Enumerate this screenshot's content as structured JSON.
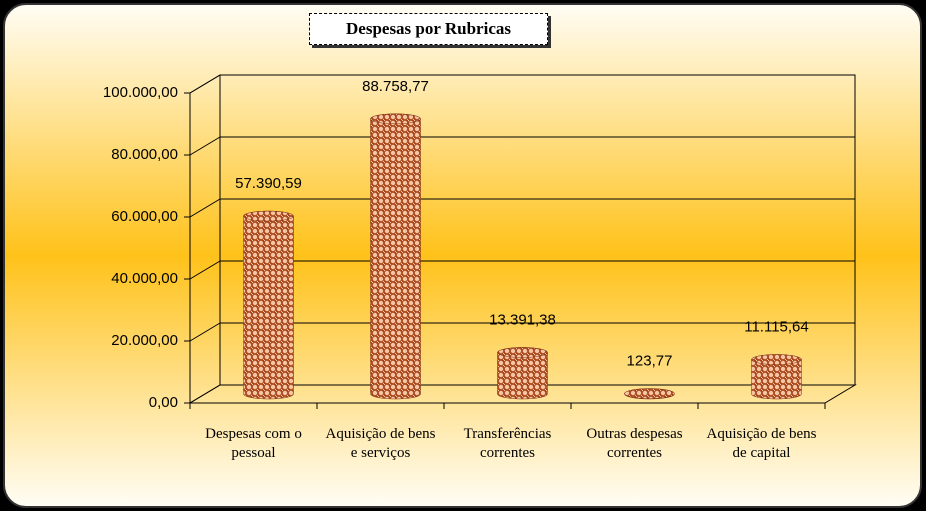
{
  "chart_data": {
    "type": "bar",
    "title": "Despesas por Rubricas",
    "categories": [
      "Despesas com o pessoal",
      "Aquisição de bens e serviços",
      "Transferências correntes",
      "Outras despesas correntes",
      "Aquisição de bens de capital"
    ],
    "values": [
      57390.59,
      88758.77,
      13391.38,
      123.77,
      11115.64
    ],
    "value_labels": [
      "57.390,59",
      "88.758,77",
      "13.391,38",
      "123,77",
      "11.115,64"
    ],
    "color": "#c0582a",
    "ylim": [
      0,
      100000
    ],
    "yticks": [
      {
        "value": 0,
        "label": "0,00"
      },
      {
        "value": 20000,
        "label": "20.000,00"
      },
      {
        "value": 40000,
        "label": "40.000,00"
      },
      {
        "value": 60000,
        "label": "60.000,00"
      },
      {
        "value": 80000,
        "label": "80.000,00"
      },
      {
        "value": 100000,
        "label": "100.000,00"
      }
    ],
    "grid": true
  }
}
